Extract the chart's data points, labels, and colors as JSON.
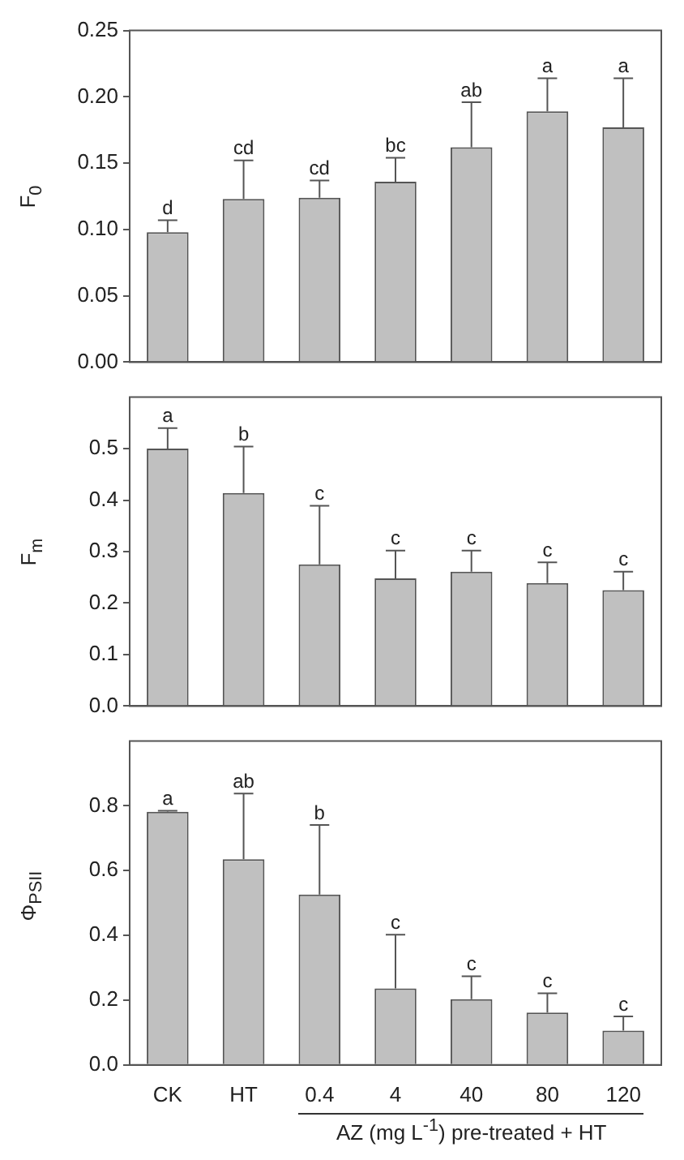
{
  "chart_data": [
    {
      "type": "bar",
      "ylabel": "F$_{0}$",
      "categories": [
        null,
        null,
        null,
        null,
        null,
        null,
        null
      ],
      "values": [
        0.098,
        0.123,
        0.124,
        0.136,
        0.162,
        0.189,
        0.177
      ],
      "errors": [
        [
          0.098,
          0.107
        ],
        [
          0.123,
          0.152
        ],
        [
          0.124,
          0.137
        ],
        [
          0.136,
          0.154
        ],
        [
          0.162,
          0.196
        ],
        [
          0.189,
          0.214
        ],
        [
          0.177,
          0.214
        ]
      ],
      "color": "#c0c0c0",
      "ylim": [
        0,
        0.25
      ],
      "yticks": [
        {
          "value": 0,
          "label": "0.00"
        },
        {
          "value": 0.05,
          "label": "0.05"
        },
        {
          "value": 0.1,
          "label": "0.10"
        },
        {
          "value": 0.15,
          "label": "0.15"
        },
        {
          "value": 0.2,
          "label": "0.20"
        },
        {
          "value": 0.25,
          "label": "0.25"
        }
      ],
      "tick_labels": "y",
      "annotations": [
        "d",
        "cd",
        "cd",
        "bc",
        "ab",
        "a",
        "a"
      ]
    },
    {
      "type": "bar",
      "ylabel": "F$_{m}$",
      "categories": [
        null,
        null,
        null,
        null,
        null,
        null,
        null
      ],
      "values": [
        0.5,
        0.414,
        0.275,
        0.248,
        0.261,
        0.239,
        0.225
      ],
      "errors": [
        [
          0.5,
          0.54
        ],
        [
          0.414,
          0.504
        ],
        [
          0.275,
          0.389
        ],
        [
          0.248,
          0.302
        ],
        [
          0.261,
          0.302
        ],
        [
          0.239,
          0.279
        ],
        [
          0.225,
          0.261
        ]
      ],
      "color": "#c0c0c0",
      "ylim": [
        0,
        0.6
      ],
      "yticks": [
        {
          "value": 0,
          "label": "0.0"
        },
        0.1,
        0.2,
        0.3,
        0.4,
        0.5
      ],
      "tick_labels": "y",
      "annotations": [
        "a",
        "b",
        "c",
        "c",
        "c",
        "c",
        "c"
      ]
    },
    {
      "type": "bar",
      "ylabel": "Φ$_{PSII}$",
      "xlabel": "AZ (mg L$^{-1}$) pre-treated + HT",
      "categories": [
        "CK",
        "HT",
        "0.4",
        "4",
        "40",
        "80",
        "120"
      ],
      "values": [
        0.782,
        0.635,
        0.526,
        0.236,
        0.203,
        0.162,
        0.106
      ],
      "errors": [
        [
          0.782,
          0.785
        ],
        [
          0.635,
          0.838
        ],
        [
          0.526,
          0.741
        ],
        [
          0.236,
          0.402
        ],
        [
          0.203,
          0.274
        ],
        [
          0.162,
          0.221
        ],
        [
          0.106,
          0.15
        ]
      ],
      "color": "#c0c0c0",
      "ylim": [
        0,
        1
      ],
      "yticks": [
        {
          "value": 0,
          "label": "0.0"
        },
        0.2,
        0.4,
        0.6,
        0.8
      ],
      "annotations": [
        "a",
        "ab",
        "b",
        "c",
        "c",
        "c",
        "c"
      ]
    }
  ]
}
